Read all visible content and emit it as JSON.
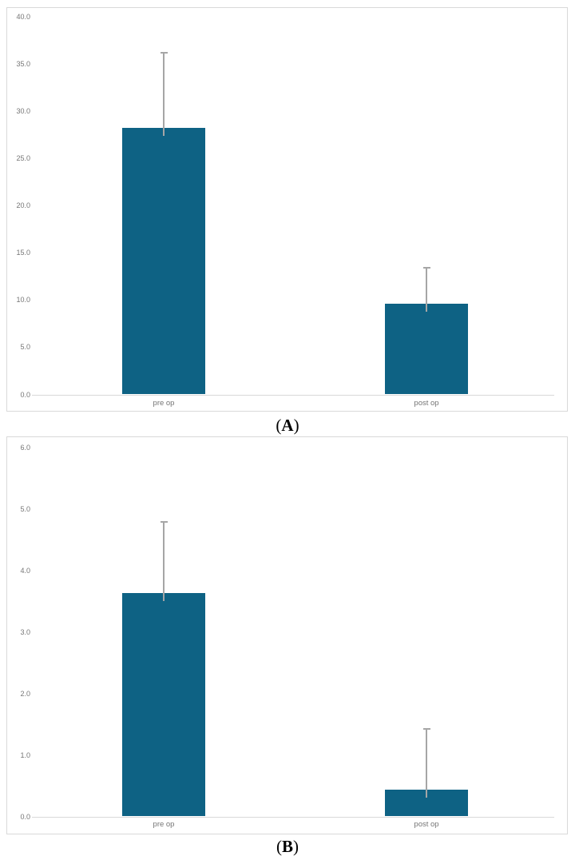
{
  "figure": {
    "description": "Two stacked single-series bar charts comparing pre op vs post op means with upper error bars",
    "background_color": "#ffffff",
    "panel_border_color": "#d9d9d9"
  },
  "chart_data": [
    {
      "id": "A",
      "type": "bar",
      "title": "",
      "xlabel": "",
      "ylabel": "",
      "caption": {
        "open": "(",
        "letter": "A",
        "close": ")"
      },
      "categories": [
        "pre op",
        "post op"
      ],
      "values": [
        28.2,
        9.6
      ],
      "error_bar_tops": [
        36.3,
        13.5
      ],
      "ylim": [
        0,
        40
      ],
      "ytick_step": 5,
      "ytick_labels": [
        "0.0",
        "5.0",
        "10.0",
        "15.0",
        "20.0",
        "25.0",
        "30.0",
        "35.0",
        "40.0"
      ],
      "legend": "none",
      "gridlines": "none, baseline only",
      "bar_color": "#0e6284",
      "error_bar_color": "#a6a6a6",
      "axis_line_color": "#d9d9d9",
      "tick_text_color": "#757575"
    },
    {
      "id": "B",
      "type": "bar",
      "title": "",
      "xlabel": "",
      "ylabel": "",
      "caption": {
        "open": "(",
        "letter": "B",
        "close": ")"
      },
      "categories": [
        "pre op",
        "post op"
      ],
      "values": [
        3.63,
        0.43
      ],
      "error_bar_tops": [
        4.8,
        1.44
      ],
      "ylim": [
        0,
        6
      ],
      "ytick_step": 1,
      "ytick_labels": [
        "0.0",
        "1.0",
        "2.0",
        "3.0",
        "4.0",
        "5.0",
        "6.0"
      ],
      "legend": "none",
      "gridlines": "none, baseline only",
      "bar_color": "#0e6284",
      "error_bar_color": "#a6a6a6",
      "axis_line_color": "#d9d9d9",
      "tick_text_color": "#757575"
    }
  ]
}
